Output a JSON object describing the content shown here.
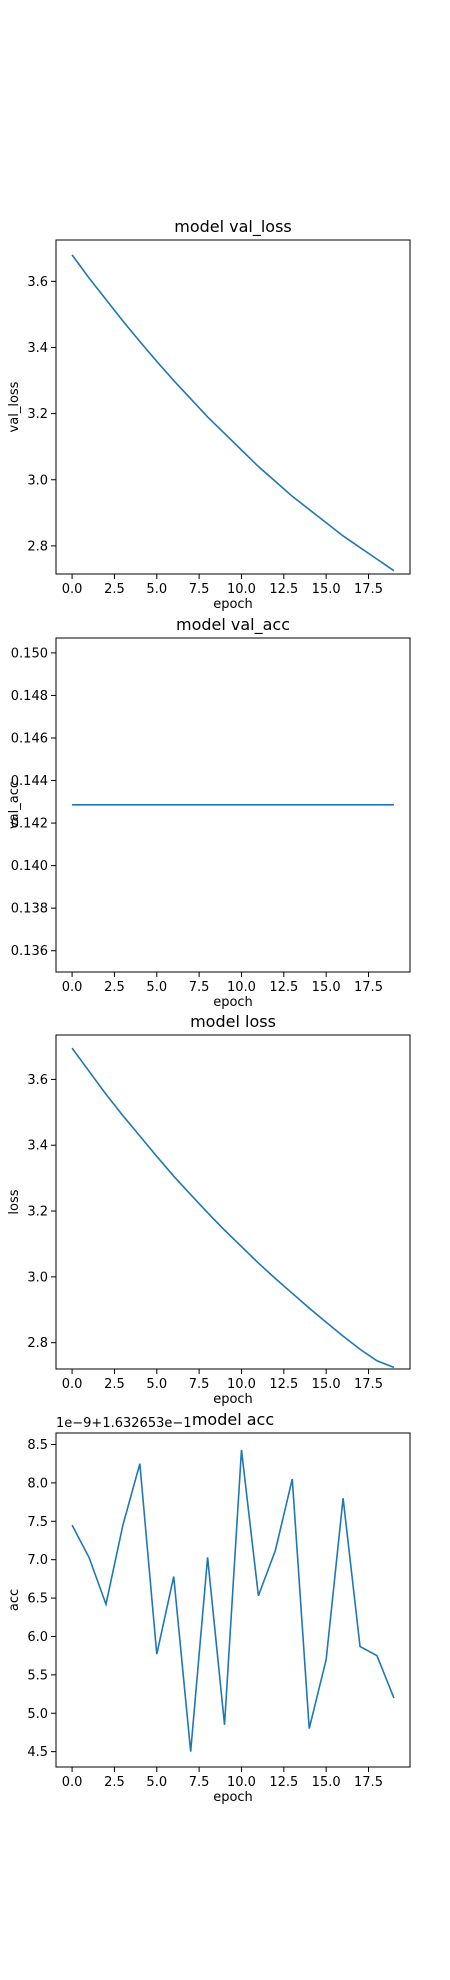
{
  "chart_data": [
    {
      "type": "line",
      "title": "model val_loss",
      "xlabel": "epoch",
      "ylabel": "val_loss",
      "xlim": [
        -0.95,
        19.95
      ],
      "ylim": [
        2.715,
        3.725
      ],
      "xticks": [
        0.0,
        2.5,
        5.0,
        7.5,
        10.0,
        12.5,
        15.0,
        17.5
      ],
      "xtick_labels": [
        "0.0",
        "2.5",
        "5.0",
        "7.5",
        "10.0",
        "12.5",
        "15.0",
        "17.5"
      ],
      "yticks": [
        2.8,
        3.0,
        3.2,
        3.4,
        3.6
      ],
      "ytick_labels": [
        "2.8",
        "3.0",
        "3.2",
        "3.4",
        "3.6"
      ],
      "offset_text": "",
      "grid": false,
      "series": [
        {
          "color": "#1f77b4",
          "x": [
            0,
            1,
            2,
            3,
            4,
            5,
            6,
            7,
            8,
            9,
            10,
            11,
            12,
            13,
            14,
            15,
            16,
            17,
            18,
            19
          ],
          "y": [
            3.68,
            3.61,
            3.545,
            3.48,
            3.418,
            3.358,
            3.3,
            3.245,
            3.19,
            3.14,
            3.09,
            3.04,
            2.995,
            2.95,
            2.91,
            2.87,
            2.83,
            2.795,
            2.76,
            2.725
          ]
        }
      ]
    },
    {
      "type": "line",
      "title": "model val_acc",
      "xlabel": "epoch",
      "ylabel": "val_acc",
      "xlim": [
        -0.95,
        19.95
      ],
      "ylim": [
        0.135,
        0.1507
      ],
      "xticks": [
        0.0,
        2.5,
        5.0,
        7.5,
        10.0,
        12.5,
        15.0,
        17.5
      ],
      "xtick_labels": [
        "0.0",
        "2.5",
        "5.0",
        "7.5",
        "10.0",
        "12.5",
        "15.0",
        "17.5"
      ],
      "yticks": [
        0.136,
        0.138,
        0.14,
        0.142,
        0.144,
        0.146,
        0.148,
        0.15
      ],
      "ytick_labels": [
        "0.136",
        "0.138",
        "0.140",
        "0.142",
        "0.144",
        "0.146",
        "0.148",
        "0.150"
      ],
      "offset_text": "",
      "grid": false,
      "series": [
        {
          "color": "#1f77b4",
          "x": [
            0,
            1,
            2,
            3,
            4,
            5,
            6,
            7,
            8,
            9,
            10,
            11,
            12,
            13,
            14,
            15,
            16,
            17,
            18,
            19
          ],
          "y": [
            0.14286,
            0.14286,
            0.14286,
            0.14286,
            0.14286,
            0.14286,
            0.14286,
            0.14286,
            0.14286,
            0.14286,
            0.14286,
            0.14286,
            0.14286,
            0.14286,
            0.14286,
            0.14286,
            0.14286,
            0.14286,
            0.14286,
            0.14286
          ]
        }
      ]
    },
    {
      "type": "line",
      "title": "model loss",
      "xlabel": "epoch",
      "ylabel": "loss",
      "xlim": [
        -0.95,
        19.95
      ],
      "ylim": [
        2.72,
        3.735
      ],
      "xticks": [
        0.0,
        2.5,
        5.0,
        7.5,
        10.0,
        12.5,
        15.0,
        17.5
      ],
      "xtick_labels": [
        "0.0",
        "2.5",
        "5.0",
        "7.5",
        "10.0",
        "12.5",
        "15.0",
        "17.5"
      ],
      "yticks": [
        2.8,
        3.0,
        3.2,
        3.4,
        3.6
      ],
      "ytick_labels": [
        "2.8",
        "3.0",
        "3.2",
        "3.4",
        "3.6"
      ],
      "offset_text": "",
      "grid": false,
      "series": [
        {
          "color": "#1f77b4",
          "x": [
            0,
            1,
            2,
            3,
            4,
            5,
            6,
            7,
            8,
            9,
            10,
            11,
            12,
            13,
            14,
            15,
            16,
            17,
            18,
            19
          ],
          "y": [
            3.695,
            3.625,
            3.555,
            3.49,
            3.428,
            3.366,
            3.306,
            3.25,
            3.195,
            3.142,
            3.092,
            3.042,
            2.995,
            2.95,
            2.905,
            2.862,
            2.82,
            2.78,
            2.745,
            2.725
          ]
        }
      ]
    },
    {
      "type": "line",
      "title": "model acc",
      "xlabel": "epoch",
      "ylabel": "acc",
      "xlim": [
        -0.95,
        19.95
      ],
      "ylim": [
        4.3,
        8.65
      ],
      "xticks": [
        0.0,
        2.5,
        5.0,
        7.5,
        10.0,
        12.5,
        15.0,
        17.5
      ],
      "xtick_labels": [
        "0.0",
        "2.5",
        "5.0",
        "7.5",
        "10.0",
        "12.5",
        "15.0",
        "17.5"
      ],
      "yticks": [
        4.5,
        5.0,
        5.5,
        6.0,
        6.5,
        7.0,
        7.5,
        8.0,
        8.5
      ],
      "ytick_labels": [
        "4.5",
        "5.0",
        "5.5",
        "6.0",
        "6.5",
        "7.0",
        "7.5",
        "8.0",
        "8.5"
      ],
      "offset_text": "1e−9+1.632653e−1",
      "grid": false,
      "series": [
        {
          "color": "#1f77b4",
          "x": [
            0,
            1,
            2,
            3,
            4,
            5,
            6,
            7,
            8,
            9,
            10,
            11,
            12,
            13,
            14,
            15,
            16,
            17,
            18,
            19
          ],
          "y": [
            7.45,
            7.03,
            6.42,
            7.45,
            8.25,
            5.77,
            6.78,
            4.5,
            7.03,
            4.85,
            8.43,
            6.53,
            7.12,
            8.05,
            4.8,
            5.7,
            7.8,
            5.87,
            5.75,
            5.2
          ]
        }
      ]
    }
  ]
}
